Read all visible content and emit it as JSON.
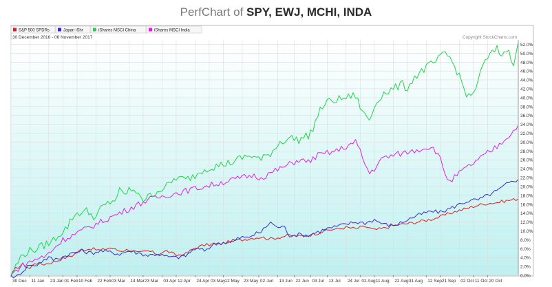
{
  "title": {
    "prefix": "PerfChart of",
    "symbols": "SPY, EWJ, MCHI, INDA"
  },
  "legend": {
    "items": [
      {
        "label": "S&P 500 SPDRs",
        "color": "#e31a1c"
      },
      {
        "label": "Japan iShr",
        "color": "#3a2bd1"
      },
      {
        "label": "iShares MSCI China",
        "color": "#1fd64a"
      },
      {
        "label": "iShares MSCI India",
        "color": "#e51ee5"
      }
    ]
  },
  "date_range": "30 December 2016 - 06 November 2017",
  "copyright": "Copyright StockCharts.com",
  "colors": {
    "plot_top": "#ffffff",
    "plot_bottom": "#bff0f0",
    "grid": "#dcdcdc",
    "axis_text": "#333333"
  },
  "chart_data": {
    "type": "line",
    "ylim": [
      0,
      53
    ],
    "y_tick_labels": [
      "0.0%",
      "2.0%",
      "4.0%",
      "6.0%",
      "8.0%",
      "10.0%",
      "12.0%",
      "14.0%",
      "16.0%",
      "18.0%",
      "20.0%",
      "22.0%",
      "24.0%",
      "26.0%",
      "28.0%",
      "30.0%",
      "32.0%",
      "34.0%",
      "36.0%",
      "38.0%",
      "40.0%",
      "42.0%",
      "44.0%",
      "46.0%",
      "48.0%",
      "50.0%",
      "52.0%"
    ],
    "x_tick_labels": [
      "30 Dec",
      "11 Jan",
      "23 Jan",
      "01 Feb",
      "10 Feb",
      "22 Feb",
      "03 Mar",
      "14 Mar",
      "23 Mar",
      "03 Apr",
      "12 Apr",
      "24 Apr",
      "03 May",
      "12 May",
      "23 May",
      "02 Jun",
      "13 Jun",
      "22 Jun",
      "03 Jul",
      "13 Jul",
      "24 Jul",
      "02 Aug",
      "11 Aug",
      "22 Aug",
      "31 Aug",
      "12 Sep",
      "21 Sep",
      "02 Oct",
      "11 Oct",
      "20 Oct"
    ],
    "x_tick_index": [
      0,
      8,
      16,
      22,
      28,
      36,
      42,
      50,
      56,
      64,
      70,
      78,
      84,
      90,
      98,
      105,
      113,
      120,
      127,
      134,
      142,
      148,
      154,
      162,
      168,
      176,
      182,
      190,
      196,
      202
    ],
    "n_points": 216,
    "series": [
      {
        "name": "S&P 500 SPDRs",
        "color": "#e31a1c",
        "anchors": [
          [
            0,
            0
          ],
          [
            2,
            1.5
          ],
          [
            5,
            2.5
          ],
          [
            8,
            1.5
          ],
          [
            10,
            2.8
          ],
          [
            14,
            2.5
          ],
          [
            18,
            3
          ],
          [
            22,
            3.8
          ],
          [
            26,
            4.5
          ],
          [
            30,
            5.8
          ],
          [
            34,
            6
          ],
          [
            38,
            5.6
          ],
          [
            42,
            6.2
          ],
          [
            46,
            5.5
          ],
          [
            50,
            5.8
          ],
          [
            54,
            5
          ],
          [
            58,
            5.5
          ],
          [
            62,
            4.8
          ],
          [
            66,
            5.5
          ],
          [
            70,
            4.5
          ],
          [
            74,
            4.8
          ],
          [
            78,
            6.2
          ],
          [
            82,
            6.8
          ],
          [
            86,
            7
          ],
          [
            90,
            7.2
          ],
          [
            94,
            7.8
          ],
          [
            98,
            8
          ],
          [
            102,
            8.4
          ],
          [
            106,
            8.6
          ],
          [
            110,
            8.2
          ],
          [
            114,
            8.6
          ],
          [
            118,
            9
          ],
          [
            122,
            8.8
          ],
          [
            126,
            9
          ],
          [
            130,
            9.5
          ],
          [
            134,
            10.2
          ],
          [
            138,
            10.4
          ],
          [
            142,
            10.8
          ],
          [
            146,
            10.5
          ],
          [
            150,
            11
          ],
          [
            154,
            10.2
          ],
          [
            158,
            10.6
          ],
          [
            162,
            11.2
          ],
          [
            166,
            11.5
          ],
          [
            170,
            11.8
          ],
          [
            174,
            12.2
          ],
          [
            178,
            12.6
          ],
          [
            182,
            13.2
          ],
          [
            186,
            14
          ],
          [
            190,
            14.6
          ],
          [
            194,
            15.2
          ],
          [
            198,
            15.8
          ],
          [
            202,
            16.2
          ],
          [
            206,
            16.4
          ],
          [
            210,
            16.8
          ],
          [
            215,
            17.2
          ]
        ]
      },
      {
        "name": "Japan iShr",
        "color": "#3a2bd1",
        "anchors": [
          [
            0,
            0
          ],
          [
            2,
            -0.5
          ],
          [
            5,
            1
          ],
          [
            8,
            2.5
          ],
          [
            10,
            2
          ],
          [
            13,
            3.2
          ],
          [
            16,
            4
          ],
          [
            18,
            3.5
          ],
          [
            22,
            4.2
          ],
          [
            26,
            5
          ],
          [
            30,
            5.5
          ],
          [
            34,
            5
          ],
          [
            38,
            5.5
          ],
          [
            42,
            5.2
          ],
          [
            46,
            4.8
          ],
          [
            50,
            5.5
          ],
          [
            54,
            5
          ],
          [
            58,
            4.5
          ],
          [
            62,
            4.8
          ],
          [
            66,
            4.2
          ],
          [
            70,
            4
          ],
          [
            74,
            4.4
          ],
          [
            78,
            6
          ],
          [
            82,
            5.6
          ],
          [
            86,
            7
          ],
          [
            90,
            7.4
          ],
          [
            94,
            7.5
          ],
          [
            96,
            8.2
          ],
          [
            98,
            8.6
          ],
          [
            100,
            8.4
          ],
          [
            102,
            9
          ],
          [
            106,
            9.8
          ],
          [
            110,
            12
          ],
          [
            112,
            11
          ],
          [
            116,
            10.8
          ],
          [
            118,
            9
          ],
          [
            122,
            9.2
          ],
          [
            126,
            9
          ],
          [
            130,
            9.8
          ],
          [
            134,
            10.5
          ],
          [
            138,
            11
          ],
          [
            142,
            11.5
          ],
          [
            146,
            12
          ],
          [
            150,
            11.8
          ],
          [
            154,
            12.5
          ],
          [
            158,
            11.5
          ],
          [
            162,
            11.2
          ],
          [
            166,
            12
          ],
          [
            170,
            13
          ],
          [
            174,
            13.8
          ],
          [
            178,
            14.4
          ],
          [
            182,
            14.2
          ],
          [
            186,
            15
          ],
          [
            190,
            16
          ],
          [
            194,
            16.8
          ],
          [
            198,
            17
          ],
          [
            202,
            18
          ],
          [
            206,
            19
          ],
          [
            210,
            20.5
          ],
          [
            215,
            21.6
          ]
        ]
      },
      {
        "name": "iShares MSCI China",
        "color": "#1fd64a",
        "anchors": [
          [
            0,
            0
          ],
          [
            2,
            2
          ],
          [
            4,
            4
          ],
          [
            6,
            5
          ],
          [
            8,
            5.5
          ],
          [
            11,
            6
          ],
          [
            14,
            6.8
          ],
          [
            17,
            7.5
          ],
          [
            20,
            9
          ],
          [
            22,
            10
          ],
          [
            24,
            11
          ],
          [
            26,
            13
          ],
          [
            28,
            14
          ],
          [
            32,
            14.5
          ],
          [
            36,
            13
          ],
          [
            38,
            15
          ],
          [
            42,
            16.5
          ],
          [
            44,
            17
          ],
          [
            46,
            19
          ],
          [
            48,
            18
          ],
          [
            50,
            19.5
          ],
          [
            52,
            18.5
          ],
          [
            54,
            19
          ],
          [
            56,
            17
          ],
          [
            58,
            17.5
          ],
          [
            62,
            19
          ],
          [
            66,
            20
          ],
          [
            70,
            22
          ],
          [
            74,
            21.5
          ],
          [
            78,
            22.5
          ],
          [
            82,
            24
          ],
          [
            86,
            24.5
          ],
          [
            90,
            25
          ],
          [
            94,
            25.5
          ],
          [
            98,
            26.5
          ],
          [
            102,
            27
          ],
          [
            106,
            26
          ],
          [
            110,
            27.5
          ],
          [
            114,
            30
          ],
          [
            118,
            31
          ],
          [
            122,
            30.5
          ],
          [
            126,
            31.5
          ],
          [
            128,
            33
          ],
          [
            130,
            36
          ],
          [
            132,
            38
          ],
          [
            134,
            39
          ],
          [
            138,
            39.5
          ],
          [
            142,
            40
          ],
          [
            146,
            40.5
          ],
          [
            148,
            38
          ],
          [
            150,
            36
          ],
          [
            152,
            35
          ],
          [
            154,
            38
          ],
          [
            156,
            40
          ],
          [
            158,
            41
          ],
          [
            162,
            42
          ],
          [
            166,
            43
          ],
          [
            168,
            42
          ],
          [
            170,
            44
          ],
          [
            172,
            45
          ],
          [
            174,
            46
          ],
          [
            178,
            47.5
          ],
          [
            180,
            48
          ],
          [
            182,
            49
          ],
          [
            184,
            50
          ],
          [
            186,
            49
          ],
          [
            188,
            47
          ],
          [
            190,
            45
          ],
          [
            192,
            42
          ],
          [
            194,
            40
          ],
          [
            196,
            41
          ],
          [
            198,
            44
          ],
          [
            200,
            47
          ],
          [
            202,
            49
          ],
          [
            204,
            50
          ],
          [
            206,
            51
          ],
          [
            208,
            49.5
          ],
          [
            210,
            51
          ],
          [
            212,
            49
          ],
          [
            213,
            48
          ],
          [
            214,
            50.5
          ],
          [
            215,
            52.5
          ]
        ]
      },
      {
        "name": "iShares MSCI India",
        "color": "#e51ee5",
        "anchors": [
          [
            0,
            0
          ],
          [
            2,
            1
          ],
          [
            4,
            2
          ],
          [
            6,
            2.5
          ],
          [
            8,
            3
          ],
          [
            10,
            3.5
          ],
          [
            12,
            4
          ],
          [
            14,
            4
          ],
          [
            16,
            5
          ],
          [
            18,
            6
          ],
          [
            20,
            7
          ],
          [
            22,
            8
          ],
          [
            26,
            9
          ],
          [
            30,
            10
          ],
          [
            34,
            11
          ],
          [
            38,
            12
          ],
          [
            42,
            13
          ],
          [
            46,
            14
          ],
          [
            50,
            15
          ],
          [
            54,
            16
          ],
          [
            58,
            17
          ],
          [
            62,
            17.5
          ],
          [
            66,
            18
          ],
          [
            70,
            18.5
          ],
          [
            74,
            19
          ],
          [
            78,
            19.5
          ],
          [
            82,
            20
          ],
          [
            86,
            20.5
          ],
          [
            90,
            21
          ],
          [
            94,
            21.5
          ],
          [
            98,
            22
          ],
          [
            102,
            22.5
          ],
          [
            106,
            22
          ],
          [
            110,
            23
          ],
          [
            114,
            24
          ],
          [
            118,
            25
          ],
          [
            122,
            26
          ],
          [
            126,
            25.5
          ],
          [
            130,
            27
          ],
          [
            134,
            27.5
          ],
          [
            138,
            28
          ],
          [
            142,
            29
          ],
          [
            146,
            30
          ],
          [
            148,
            28
          ],
          [
            150,
            25
          ],
          [
            152,
            23
          ],
          [
            154,
            24
          ],
          [
            156,
            25.5
          ],
          [
            158,
            26.5
          ],
          [
            162,
            27
          ],
          [
            166,
            27.5
          ],
          [
            170,
            28
          ],
          [
            174,
            28.5
          ],
          [
            178,
            29
          ],
          [
            180,
            28
          ],
          [
            182,
            26
          ],
          [
            184,
            23
          ],
          [
            186,
            21
          ],
          [
            188,
            22
          ],
          [
            190,
            23
          ],
          [
            194,
            24.5
          ],
          [
            198,
            26
          ],
          [
            202,
            27.5
          ],
          [
            206,
            29
          ],
          [
            210,
            31
          ],
          [
            213,
            32.5
          ],
          [
            215,
            33.8
          ]
        ]
      }
    ]
  }
}
